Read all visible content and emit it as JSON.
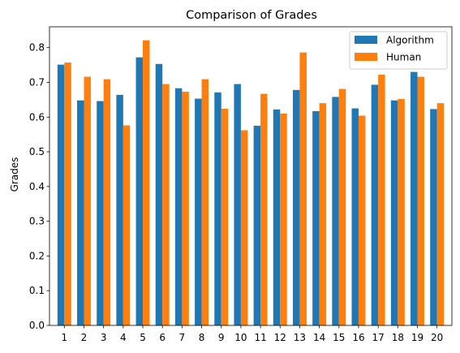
{
  "chart_data": {
    "type": "bar",
    "title": "Comparison of Grades",
    "xlabel": "",
    "ylabel": "Grades",
    "categories": [
      "1",
      "2",
      "3",
      "4",
      "5",
      "6",
      "7",
      "8",
      "9",
      "10",
      "11",
      "12",
      "13",
      "14",
      "15",
      "16",
      "17",
      "18",
      "19",
      "20"
    ],
    "series": [
      {
        "name": "Algorithm",
        "color": "#1f77b4",
        "values": [
          0.751,
          0.648,
          0.646,
          0.664,
          0.772,
          0.753,
          0.683,
          0.653,
          0.671,
          0.695,
          0.575,
          0.622,
          0.678,
          0.617,
          0.658,
          0.625,
          0.693,
          0.648,
          0.73,
          0.623
        ]
      },
      {
        "name": "Human",
        "color": "#ff7f0e",
        "values": [
          0.757,
          0.716,
          0.709,
          0.576,
          0.821,
          0.695,
          0.673,
          0.709,
          0.624,
          0.562,
          0.667,
          0.61,
          0.786,
          0.64,
          0.681,
          0.604,
          0.722,
          0.652,
          0.716,
          0.64
        ]
      }
    ],
    "ylim": [
      0,
      0.86
    ],
    "yticks": [
      "0.0",
      "0.1",
      "0.2",
      "0.3",
      "0.4",
      "0.5",
      "0.6",
      "0.7",
      "0.8"
    ],
    "grid": false,
    "legend_position": "top-right"
  }
}
